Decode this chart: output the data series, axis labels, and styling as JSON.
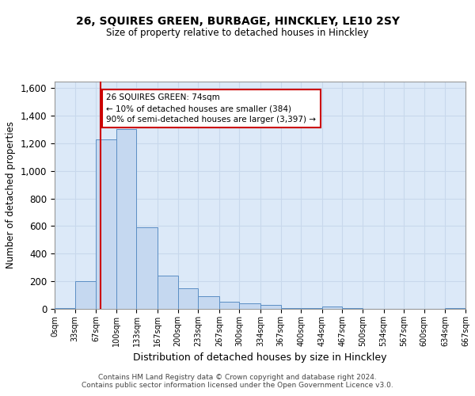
{
  "title": "26, SQUIRES GREEN, BURBAGE, HINCKLEY, LE10 2SY",
  "subtitle": "Size of property relative to detached houses in Hinckley",
  "xlabel": "Distribution of detached houses by size in Hinckley",
  "ylabel": "Number of detached properties",
  "property_size": 74,
  "annotation_text": "26 SQUIRES GREEN: 74sqm\n← 10% of detached houses are smaller (384)\n90% of semi-detached houses are larger (3,397) →",
  "bin_edges": [
    0,
    33,
    67,
    100,
    133,
    167,
    200,
    233,
    267,
    300,
    334,
    367,
    400,
    434,
    467,
    500,
    534,
    567,
    600,
    634,
    667
  ],
  "bar_heights": [
    5,
    200,
    1230,
    1300,
    590,
    240,
    150,
    90,
    50,
    40,
    30,
    5,
    5,
    20,
    5,
    0,
    0,
    0,
    0,
    5
  ],
  "bar_color": "#c5d8f0",
  "bar_edge_color": "#5b8ec4",
  "red_line_color": "#cc0000",
  "annotation_box_color": "#cc0000",
  "background_color": "#dce9f8",
  "grid_color": "#c8d8ec",
  "ylim": [
    0,
    1650
  ],
  "yticks": [
    0,
    200,
    400,
    600,
    800,
    1000,
    1200,
    1400,
    1600
  ],
  "xtick_labels": [
    "0sqm",
    "33sqm",
    "67sqm",
    "100sqm",
    "133sqm",
    "167sqm",
    "200sqm",
    "233sqm",
    "267sqm",
    "300sqm",
    "334sqm",
    "367sqm",
    "400sqm",
    "434sqm",
    "467sqm",
    "500sqm",
    "534sqm",
    "567sqm",
    "600sqm",
    "634sqm",
    "667sqm"
  ],
  "footer_line1": "Contains HM Land Registry data © Crown copyright and database right 2024.",
  "footer_line2": "Contains public sector information licensed under the Open Government Licence v3.0."
}
